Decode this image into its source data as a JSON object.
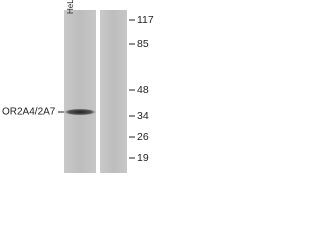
{
  "lanes": [
    {
      "label": "HeLa"
    }
  ],
  "band_label": "OR2A4/2A7",
  "markers": [
    117,
    85,
    48,
    34,
    26,
    19
  ]
}
